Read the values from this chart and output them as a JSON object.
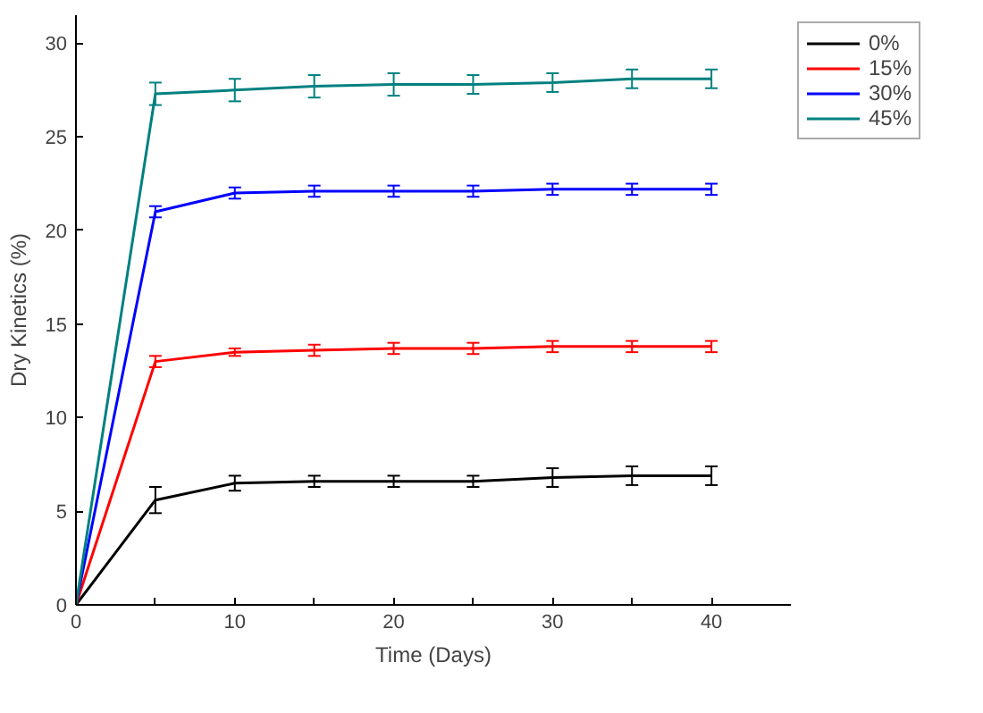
{
  "chart_data": {
    "type": "line",
    "xlabel": "Time (Days)",
    "ylabel": "Dry Kinetics (%)",
    "x": [
      0,
      5,
      10,
      15,
      20,
      25,
      30,
      35,
      40
    ],
    "xlim": [
      0,
      45
    ],
    "xticks": [
      0,
      {
        "value": 5,
        "label": null
      },
      10,
      {
        "value": 15,
        "label": null
      },
      20,
      {
        "value": 25,
        "label": null
      },
      30,
      {
        "value": 35,
        "label": null
      },
      40
    ],
    "ylim": [
      0,
      31.5
    ],
    "yticks": [
      0,
      5,
      10,
      15,
      20,
      25,
      30
    ],
    "grid": false,
    "legend": "top right",
    "marker": "none",
    "line_style": "solid",
    "series": [
      {
        "name": "0%",
        "color": "#000000",
        "values": [
          0,
          5.6,
          6.5,
          6.6,
          6.6,
          6.6,
          6.8,
          6.9,
          6.9
        ],
        "errors": [
          null,
          0.7,
          0.4,
          0.3,
          0.3,
          0.3,
          0.5,
          0.5,
          0.5
        ]
      },
      {
        "name": "15%",
        "color": "#ff0000",
        "values": [
          0,
          13.0,
          13.5,
          13.6,
          13.7,
          13.7,
          13.8,
          13.8,
          13.8
        ],
        "errors": [
          null,
          0.3,
          0.2,
          0.3,
          0.3,
          0.3,
          0.3,
          0.3,
          0.3
        ]
      },
      {
        "name": "30%",
        "color": "#0000ff",
        "values": [
          0,
          21.0,
          22.0,
          22.1,
          22.1,
          22.1,
          22.2,
          22.2,
          22.2
        ],
        "errors": [
          null,
          0.3,
          0.3,
          0.3,
          0.3,
          0.3,
          0.3,
          0.3,
          0.3
        ]
      },
      {
        "name": "45%",
        "color": "#008080",
        "values": [
          0,
          27.3,
          27.5,
          27.7,
          27.8,
          27.8,
          27.9,
          28.1,
          28.1
        ],
        "errors": [
          null,
          0.6,
          0.6,
          0.6,
          0.6,
          0.5,
          0.5,
          0.5,
          0.5
        ]
      }
    ]
  }
}
